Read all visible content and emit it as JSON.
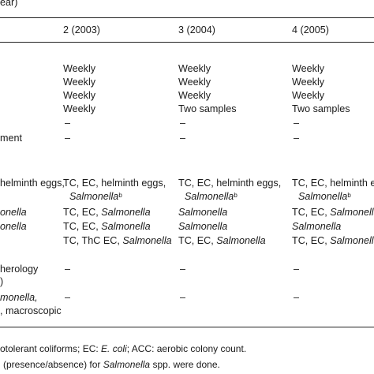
{
  "header": {
    "partial": "ear)",
    "columns": [
      "2 (2003)",
      "3 (2004)",
      "4 (2005)"
    ]
  },
  "left_labels": {
    "ment": "ment",
    "helminth_eggs": "helminth eggs,",
    "nella1": "onella",
    "nella2": "onella",
    "herology": "herology",
    "paren": ")",
    "monella": "monella,",
    "macroscopic": ", macroscopic"
  },
  "cells": {
    "freq": [
      [
        "Weekly",
        "Weekly",
        "Weekly"
      ],
      [
        "Weekly",
        "Weekly",
        "Weekly"
      ],
      [
        "Weekly",
        "Weekly",
        "Weekly"
      ],
      [
        "Weekly",
        "Two samples",
        "Two samples"
      ],
      [
        "–",
        "–",
        "–"
      ],
      [
        "–",
        "–",
        "–"
      ]
    ],
    "c2": {
      "r1a": "TC, EC, helminth eggs,",
      "r1b": "Salmonella",
      "r1sup": "b",
      "r2": "TC, EC, ",
      "r2i": "Salmonella",
      "r3": "TC, EC, ",
      "r3i": "Salmonella",
      "r4": "TC, ThC EC, ",
      "r4i": "Salmonella",
      "dash1": "–",
      "dash2": "–"
    },
    "c3": {
      "r1a": "TC, EC, helminth eggs,",
      "r1b": "Salmonella",
      "r1sup": "b",
      "r2i": "Salmonella",
      "r3i": "Salmonella",
      "r4": "TC, EC, ",
      "r4i": "Salmonella",
      "dash1": "–",
      "dash2": "–"
    },
    "c4": {
      "r1a": "TC, EC, helminth e",
      "r1b": "Salmonella",
      "r1sup": "b",
      "r2": "TC, EC, ",
      "r2i": "Salmonella",
      "r3i": "Salmonella",
      "r4": "TC, EC, ",
      "r4i": "Salmonella",
      "dash1": "–",
      "dash2": "–"
    }
  },
  "footnotes": {
    "line1a": "otolerant coliforms; EC: ",
    "line1i": "E. coli",
    "line1b": "; ACC: aerobic colony count.",
    "line2a": "(presence/absence) for ",
    "line2i": "Salmonella",
    "line2b": " spp. were done."
  }
}
